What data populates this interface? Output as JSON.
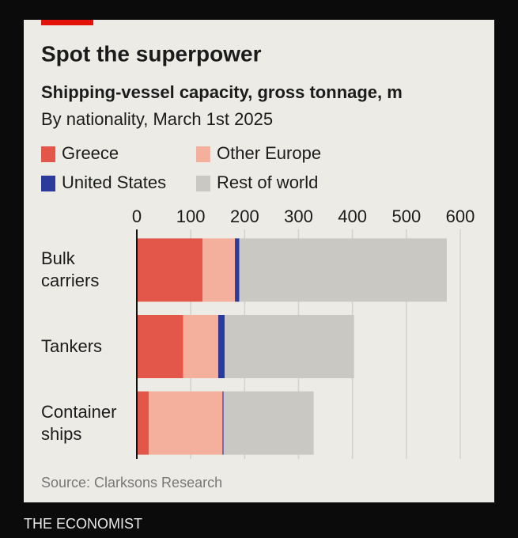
{
  "chart_data": {
    "type": "stacked-bar-horizontal",
    "title": "Spot the superpower",
    "subtitle": "Shipping-vessel capacity, gross tonnage, m",
    "note": "By nationality, March 1st 2025",
    "source": "Source: Clarksons Research",
    "brand": "THE ECONOMIST",
    "categories": [
      "Bulk carriers",
      "Tankers",
      "Container ships"
    ],
    "series": [
      {
        "name": "Greece",
        "color": "#e3574b",
        "values": [
          122,
          86,
          22
        ]
      },
      {
        "name": "Other Europe",
        "color": "#f4b09c",
        "values": [
          60,
          65,
          137
        ]
      },
      {
        "name": "United States",
        "color": "#2b3b9c",
        "values": [
          8,
          12,
          2
        ]
      },
      {
        "name": "Rest of world",
        "color": "#c9c8c2",
        "values": [
          385,
          240,
          167
        ]
      }
    ],
    "xlim": [
      0,
      600
    ],
    "xticks": [
      0,
      100,
      200,
      300,
      400,
      500,
      600
    ],
    "grid": true
  }
}
